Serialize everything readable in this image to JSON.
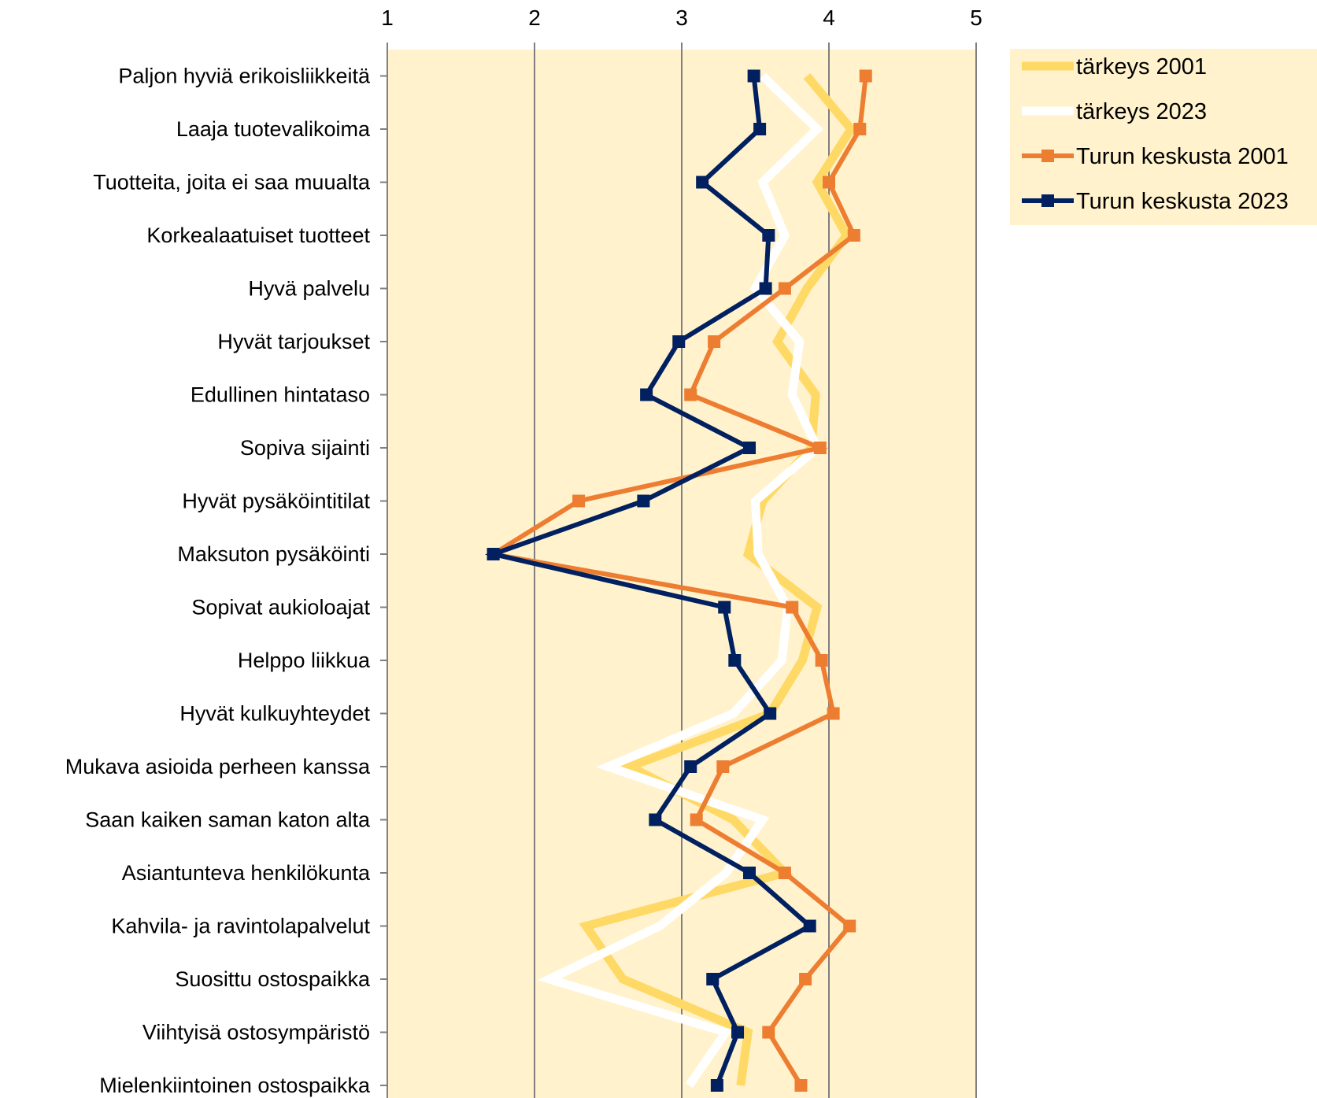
{
  "chart_data": {
    "type": "line",
    "orientation": "horizontal-profile",
    "x_ticks": [
      "1",
      "2",
      "3",
      "4",
      "5"
    ],
    "xlim": [
      1,
      5
    ],
    "grid": "vertical-lines",
    "legend_position": "right",
    "categories": [
      "Paljon hyviä erikoisliikkeitä",
      "Laaja tuotevalikoima",
      "Tuotteita, joita ei saa muualta",
      "Korkealaatuiset tuotteet",
      "Hyvä palvelu",
      "Hyvät tarjoukset",
      "Edullinen hintataso",
      "Sopiva sijainti",
      "Hyvät pysäköintitilat",
      "Maksuton pysäköinti",
      "Sopivat aukioloajat",
      "Helppo liikkua",
      "Hyvät kulkuyhteydet",
      "Mukava asioida perheen kanssa",
      "Saan kaiken saman katon alta",
      "Asiantunteva henkilökunta",
      "Kahvila- ja ravintolapalvelut",
      "Suosittu ostospaikka",
      "Viihtyisä ostosympäristö",
      "Mielenkiintoinen ostospaikka"
    ],
    "series": [
      {
        "name": "tärkeys 2001",
        "color": "#FFD966",
        "marker": "none",
        "values": [
          3.85,
          4.15,
          3.92,
          4.12,
          3.85,
          3.65,
          3.91,
          3.88,
          3.55,
          3.45,
          3.92,
          3.82,
          3.6,
          2.65,
          3.35,
          3.7,
          2.35,
          2.6,
          3.45,
          3.4
        ]
      },
      {
        "name": "tärkeys 2023",
        "color": "#FFFFFF",
        "marker": "none",
        "values": [
          3.55,
          3.92,
          3.55,
          3.7,
          3.5,
          3.8,
          3.75,
          3.92,
          3.5,
          3.52,
          3.72,
          3.68,
          3.35,
          2.5,
          3.55,
          3.3,
          2.85,
          2.1,
          3.3,
          3.05
        ]
      },
      {
        "name": "Turun keskusta 2001",
        "color": "#ED7D31",
        "marker": "square",
        "values": [
          4.25,
          4.21,
          4.0,
          4.17,
          3.7,
          3.22,
          3.06,
          3.94,
          2.3,
          1.72,
          3.75,
          3.95,
          4.03,
          3.28,
          3.1,
          3.7,
          4.14,
          3.84,
          3.59,
          3.81
        ]
      },
      {
        "name": "Turun keskusta 2023",
        "color": "#002060",
        "marker": "square",
        "values": [
          3.49,
          3.53,
          3.14,
          3.59,
          3.57,
          2.98,
          2.76,
          3.46,
          2.74,
          1.72,
          3.29,
          3.36,
          3.6,
          3.06,
          2.82,
          3.46,
          3.87,
          3.21,
          3.38,
          3.24
        ]
      }
    ]
  }
}
